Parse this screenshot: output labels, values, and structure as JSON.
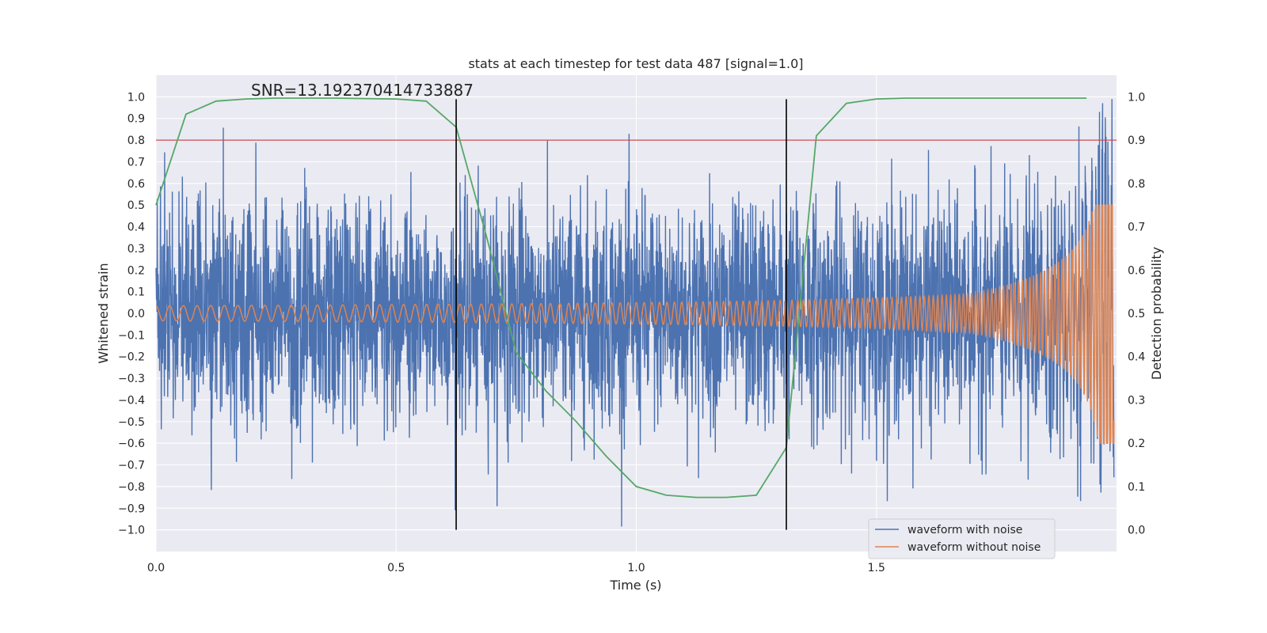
{
  "chart_data": {
    "type": "line",
    "title": "stats at each timestep for test data 487 [signal=1.0]",
    "xlabel": "Time (s)",
    "ylabel": "Whitened strain",
    "ylabel_right": "Detection probability",
    "xlim": [
      0.0,
      2.0
    ],
    "ylim": [
      -1.1,
      1.1
    ],
    "ylim_right": [
      -0.05,
      1.05
    ],
    "x_ticks": [
      0.0,
      0.5,
      1.0,
      1.5
    ],
    "x_tick_labels": [
      "0.0",
      "0.5",
      "1.0",
      "1.5"
    ],
    "y_ticks": [
      1.0,
      0.9,
      0.8,
      0.7,
      0.6,
      0.5,
      0.4,
      0.3,
      0.2,
      0.1,
      0.0,
      -0.1,
      -0.2,
      -0.3,
      -0.4,
      -0.5,
      -0.6,
      -0.7,
      -0.8,
      -0.9,
      -1.0
    ],
    "y_tick_labels": [
      "1.0",
      "0.9",
      "0.8",
      "0.7",
      "0.6",
      "0.5",
      "0.4",
      "0.3",
      "0.2",
      "0.1",
      "0.0",
      "−0.1",
      "−0.2",
      "−0.3",
      "−0.4",
      "−0.5",
      "−0.6",
      "−0.7",
      "−0.8",
      "−0.9",
      "−1.0"
    ],
    "y_right_ticks": [
      1.0,
      0.9,
      0.8,
      0.7,
      0.6,
      0.5,
      0.4,
      0.3,
      0.2,
      0.1,
      0.0
    ],
    "y_right_tick_labels": [
      "1.0",
      "0.9",
      "0.8",
      "0.7",
      "0.6",
      "0.5",
      "0.4",
      "0.3",
      "0.2",
      "0.1",
      "0.0"
    ],
    "grid": true,
    "annotation": "SNR=13.192370414733887",
    "legend_position": "lower-right",
    "series": [
      {
        "name": "waveform with noise",
        "color": "#4c72b0",
        "axis": "left",
        "kind": "noise",
        "amplitude_range": [
          -1.0,
          0.99
        ]
      },
      {
        "name": "waveform without noise",
        "color": "#dd8452",
        "axis": "left",
        "kind": "chirp"
      },
      {
        "color": "#55a868",
        "axis": "right",
        "x": [
          0.0,
          0.0625,
          0.125,
          0.1875,
          0.25,
          0.3125,
          0.375,
          0.4375,
          0.5,
          0.5625,
          0.625,
          0.6875,
          0.75,
          0.8125,
          0.875,
          0.9375,
          1.0,
          1.0625,
          1.125,
          1.1875,
          1.25,
          1.3125,
          1.375,
          1.4375,
          1.5,
          1.5625,
          1.625,
          1.6875,
          1.75,
          1.8125,
          1.875,
          1.9375
        ],
        "values": [
          0.75,
          0.96,
          0.99,
          0.995,
          0.997,
          0.997,
          0.997,
          0.996,
          0.995,
          0.99,
          0.93,
          0.68,
          0.41,
          0.32,
          0.25,
          0.17,
          0.1,
          0.08,
          0.075,
          0.075,
          0.08,
          0.19,
          0.91,
          0.985,
          0.995,
          0.997,
          0.997,
          0.997,
          0.997,
          0.997,
          0.997,
          0.997
        ]
      }
    ],
    "threshold_line": {
      "y_right": 0.9,
      "color": "#c44e52"
    },
    "vertical_lines": [
      {
        "x": 0.625,
        "color": "#000000",
        "ymin": -1.0,
        "ymax": 1.0
      },
      {
        "x": 1.3125,
        "color": "#000000",
        "ymin": -1.0,
        "ymax": 1.0
      }
    ]
  }
}
